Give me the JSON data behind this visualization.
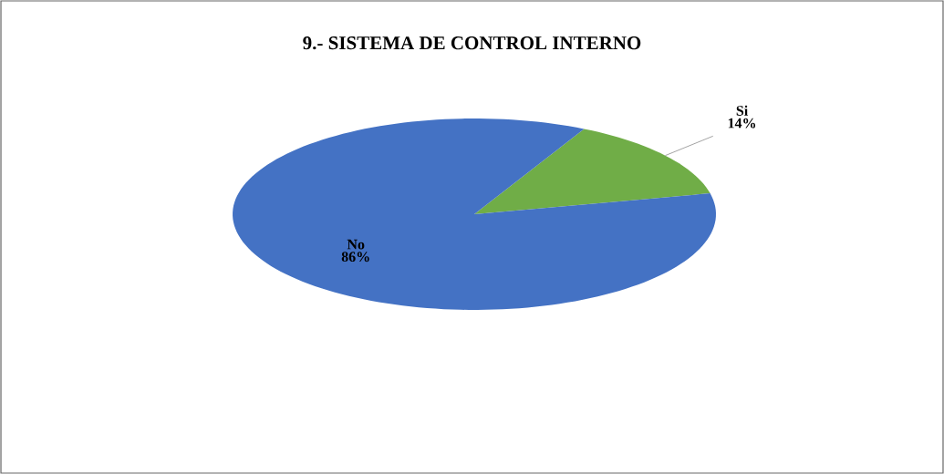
{
  "chart_data": {
    "type": "pie",
    "title": "9.- SISTEMA DE CONTROL INTERNO",
    "categories": [
      "Si",
      "No"
    ],
    "values": [
      14,
      86
    ],
    "value_labels": [
      "14%",
      "86%"
    ],
    "colors": [
      "#70ad47",
      "#4472c4"
    ]
  }
}
